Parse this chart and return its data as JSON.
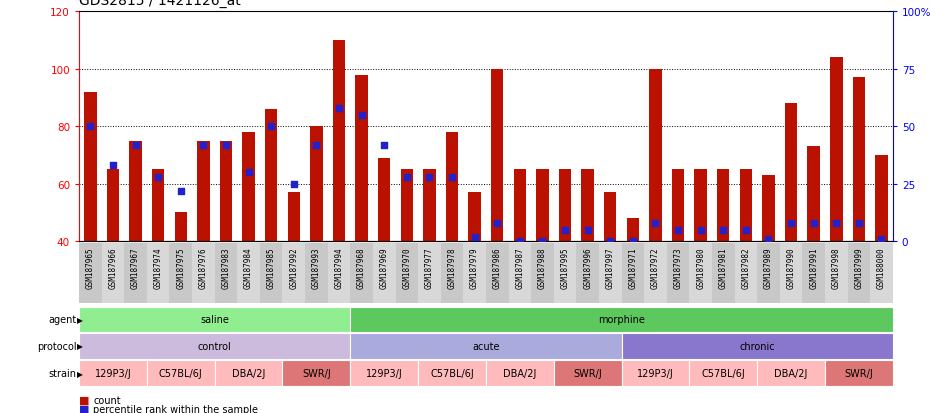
{
  "title": "GDS2815 / 1421126_at",
  "gsm_ids": [
    "GSM187965",
    "GSM187966",
    "GSM187967",
    "GSM187974",
    "GSM187975",
    "GSM187976",
    "GSM187983",
    "GSM187984",
    "GSM187985",
    "GSM187992",
    "GSM187993",
    "GSM187994",
    "GSM187968",
    "GSM187969",
    "GSM187970",
    "GSM187977",
    "GSM187978",
    "GSM187979",
    "GSM187986",
    "GSM187987",
    "GSM187988",
    "GSM187995",
    "GSM187996",
    "GSM187997",
    "GSM187971",
    "GSM187972",
    "GSM187973",
    "GSM187980",
    "GSM187981",
    "GSM187982",
    "GSM187989",
    "GSM187990",
    "GSM187991",
    "GSM187998",
    "GSM187999",
    "GSM188000"
  ],
  "red_values": [
    92,
    65,
    75,
    65,
    50,
    75,
    75,
    78,
    86,
    57,
    80,
    110,
    98,
    69,
    65,
    65,
    78,
    57,
    100,
    65,
    65,
    65,
    65,
    57,
    48,
    100,
    65,
    65,
    65,
    65,
    63,
    88,
    73,
    104,
    97,
    70
  ],
  "blue_percentiles": [
    50,
    33,
    42,
    28,
    22,
    42,
    42,
    30,
    50,
    25,
    42,
    58,
    55,
    42,
    28,
    28,
    28,
    2,
    8,
    0,
    0,
    5,
    5,
    0,
    0,
    8,
    5,
    5,
    5,
    5,
    1,
    8,
    8,
    8,
    8,
    1
  ],
  "ylim_left": [
    40,
    120
  ],
  "yticks_left": [
    40,
    60,
    80,
    100,
    120
  ],
  "ylim_right": [
    0,
    100
  ],
  "yticks_right": [
    0,
    25,
    50,
    75,
    100
  ],
  "right_tick_labels": [
    "0",
    "25",
    "50",
    "75",
    "100%"
  ],
  "agent_groups": [
    {
      "label": "saline",
      "start": 0,
      "end": 12,
      "color": "#90EE90"
    },
    {
      "label": "morphine",
      "start": 12,
      "end": 36,
      "color": "#5DC85D"
    }
  ],
  "protocol_groups": [
    {
      "label": "control",
      "start": 0,
      "end": 12,
      "color": "#CCBBDD"
    },
    {
      "label": "acute",
      "start": 12,
      "end": 24,
      "color": "#AAAADD"
    },
    {
      "label": "chronic",
      "start": 24,
      "end": 36,
      "color": "#8877CC"
    }
  ],
  "strain_groups": [
    {
      "label": "129P3/J",
      "start": 0,
      "end": 3,
      "color": "#FFBBBB"
    },
    {
      "label": "C57BL/6J",
      "start": 3,
      "end": 6,
      "color": "#FFBBBB"
    },
    {
      "label": "DBA/2J",
      "start": 6,
      "end": 9,
      "color": "#FFBBBB"
    },
    {
      "label": "SWR/J",
      "start": 9,
      "end": 12,
      "color": "#DD7777"
    },
    {
      "label": "129P3/J",
      "start": 12,
      "end": 15,
      "color": "#FFBBBB"
    },
    {
      "label": "C57BL/6J",
      "start": 15,
      "end": 18,
      "color": "#FFBBBB"
    },
    {
      "label": "DBA/2J",
      "start": 18,
      "end": 21,
      "color": "#FFBBBB"
    },
    {
      "label": "SWR/J",
      "start": 21,
      "end": 24,
      "color": "#DD7777"
    },
    {
      "label": "129P3/J",
      "start": 24,
      "end": 27,
      "color": "#FFBBBB"
    },
    {
      "label": "C57BL/6J",
      "start": 27,
      "end": 30,
      "color": "#FFBBBB"
    },
    {
      "label": "DBA/2J",
      "start": 30,
      "end": 33,
      "color": "#FFBBBB"
    },
    {
      "label": "SWR/J",
      "start": 33,
      "end": 36,
      "color": "#DD7777"
    }
  ],
  "bar_color": "#BB1100",
  "dot_color": "#2222CC",
  "title_fontsize": 10
}
